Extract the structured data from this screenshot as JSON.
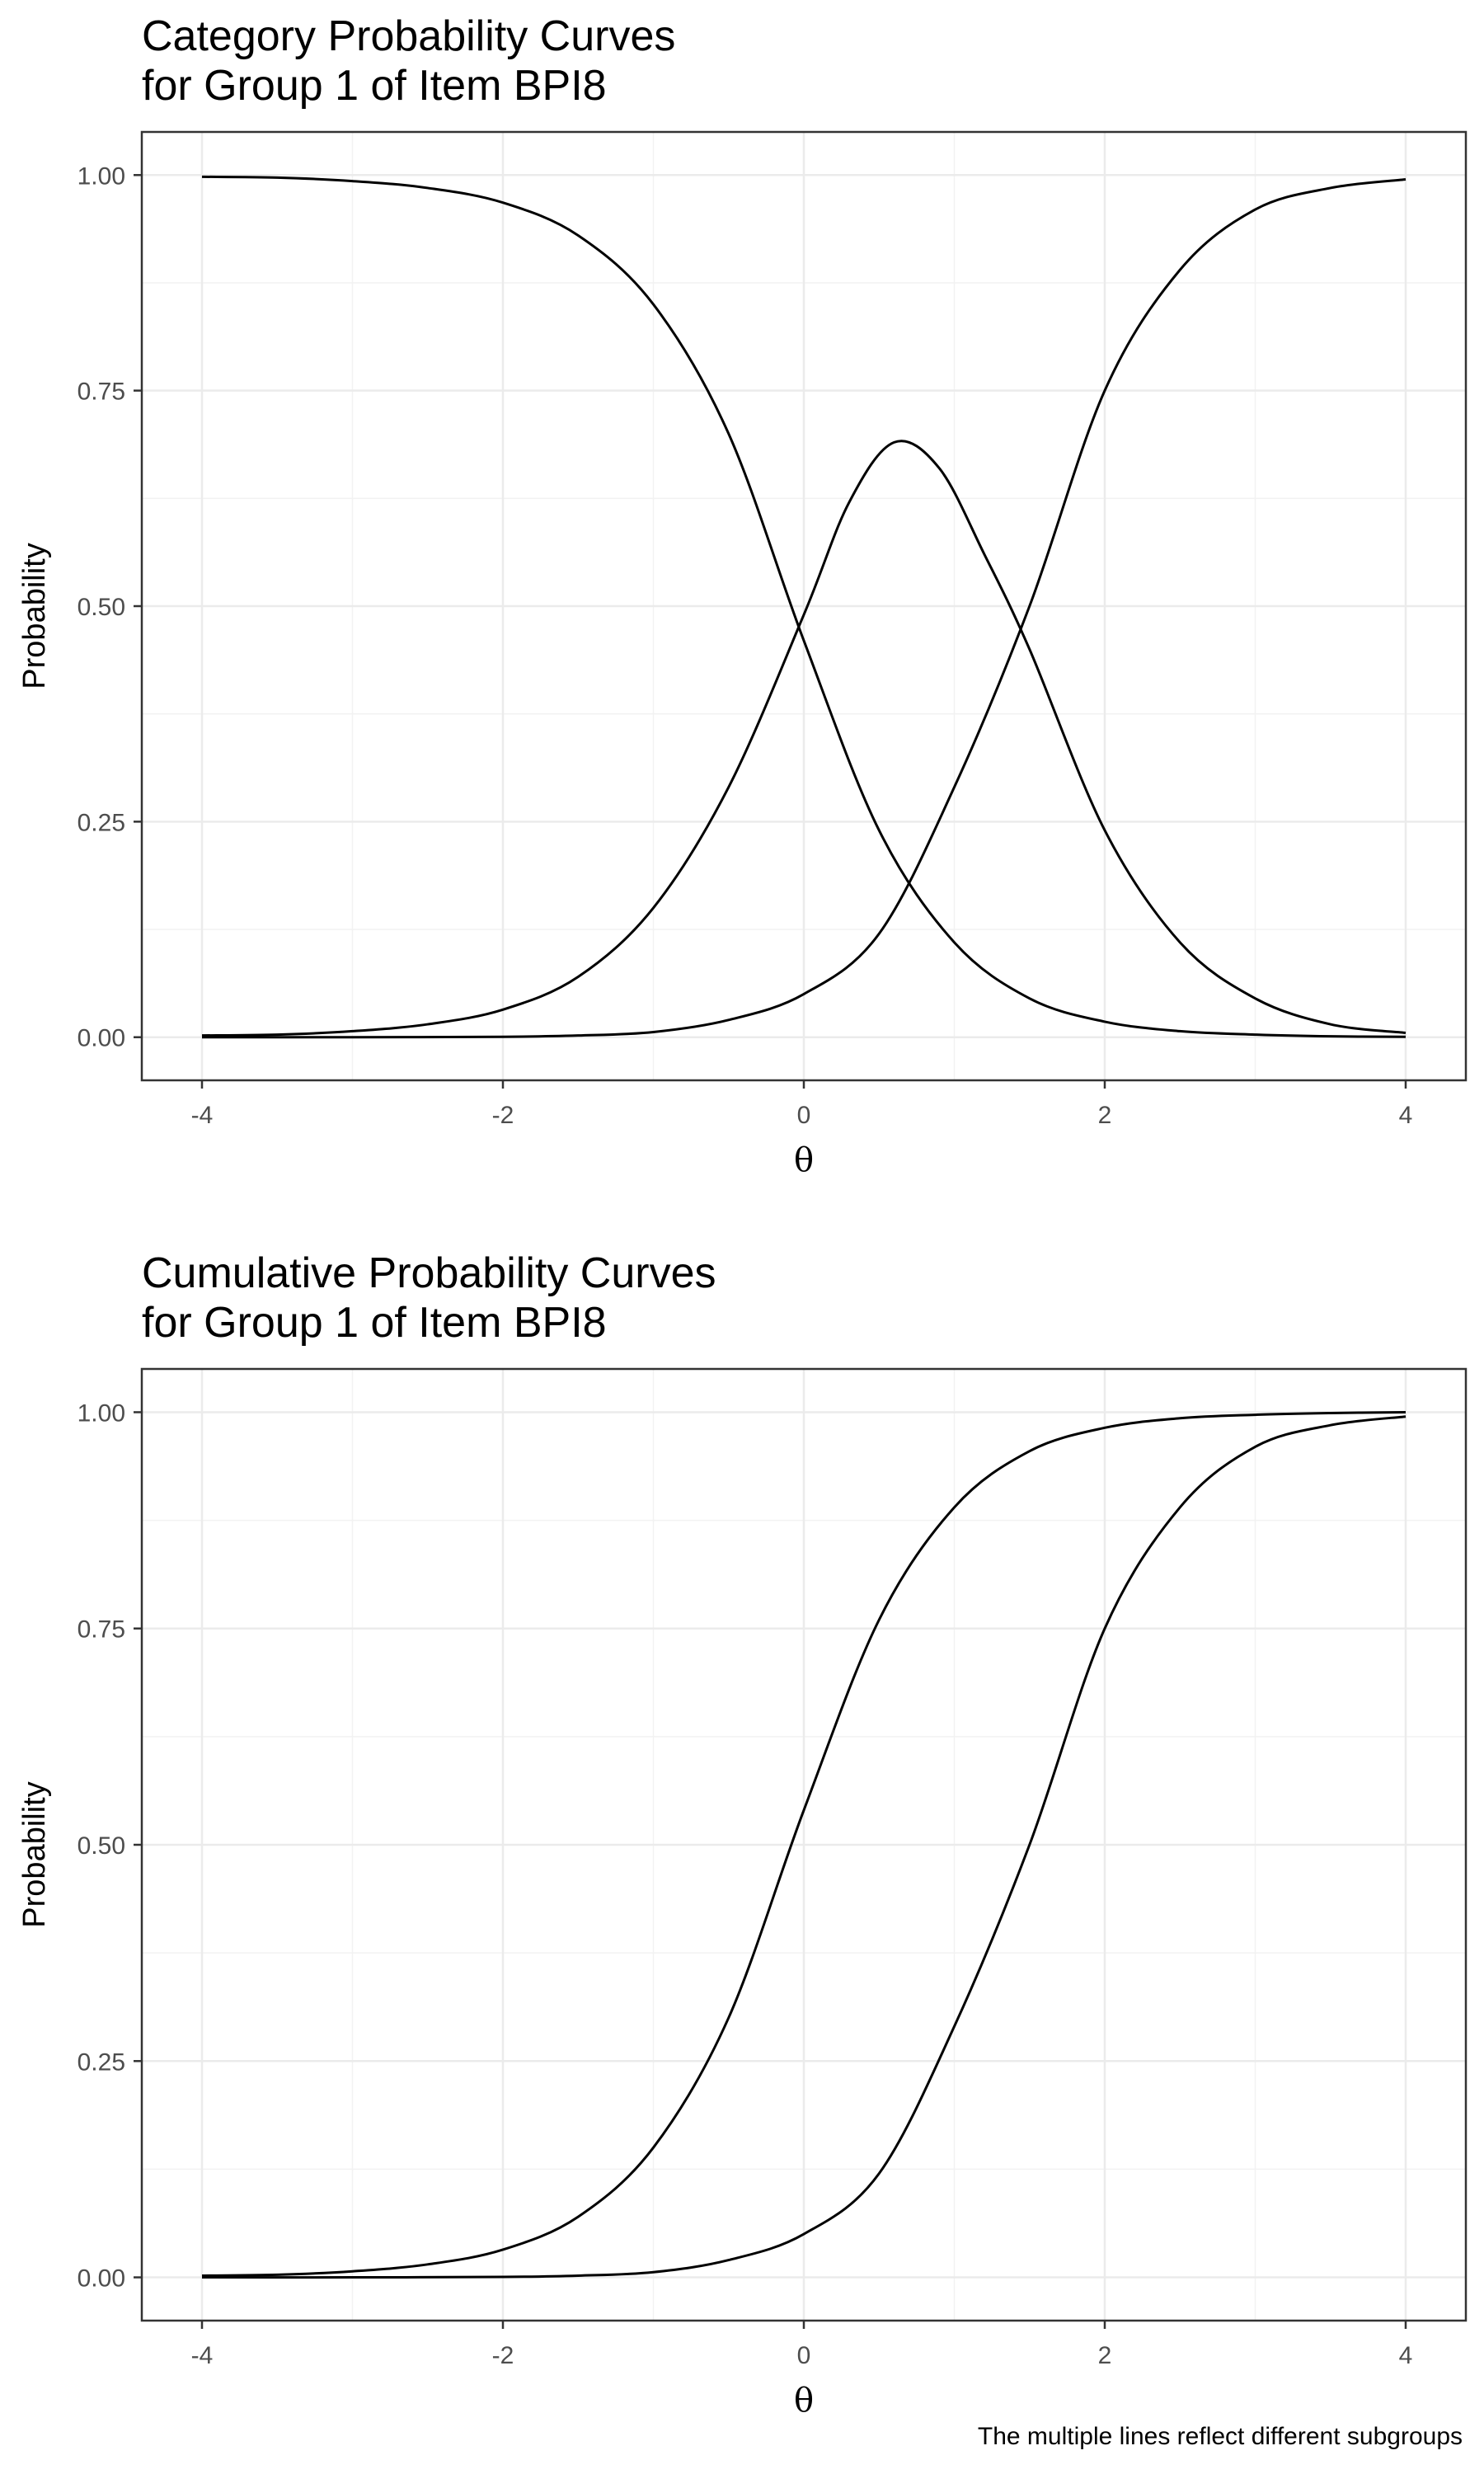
{
  "chart_data": [
    {
      "type": "line",
      "title": [
        "Category Probability Curves",
        "for Group 1 of Item BPI8"
      ],
      "xlabel": "θ",
      "ylabel": "Probability",
      "xlim": [
        -4.4,
        4.4
      ],
      "ylim": [
        -0.05,
        1.05
      ],
      "x_ticks": [
        -4,
        -2,
        0,
        2,
        4
      ],
      "x_tick_labels": [
        "-4",
        "-2",
        "0",
        "2",
        "4"
      ],
      "y_ticks": [
        0,
        0.25,
        0.5,
        0.75,
        1
      ],
      "y_tick_labels": [
        "0.00",
        "0.25",
        "0.50",
        "0.75",
        "1.00"
      ],
      "grid": true,
      "line_color": "#000000",
      "series": [
        {
          "x": [
            -4,
            -3.5,
            -3,
            -2.5,
            -2,
            -1.5,
            -1,
            -0.5,
            0,
            0.5,
            1,
            1.5,
            2,
            2.5,
            3,
            3.5,
            4
          ],
          "y": [
            0.998,
            0.997,
            0.993,
            0.985,
            0.968,
            0.93,
            0.85,
            0.7,
            0.46,
            0.24,
            0.11,
            0.045,
            0.018,
            0.007,
            0.003,
            0.001,
            0.0005
          ]
        },
        {
          "x": [
            -4,
            -3.5,
            -3,
            -2.5,
            -2,
            -1.5,
            -1,
            -0.5,
            0,
            0.3,
            0.6,
            0.9,
            1.2,
            1.5,
            2,
            2.5,
            3,
            3.5,
            4
          ],
          "y": [
            0.002,
            0.003,
            0.007,
            0.015,
            0.032,
            0.07,
            0.15,
            0.29,
            0.49,
            0.62,
            0.69,
            0.66,
            0.56,
            0.45,
            0.24,
            0.11,
            0.045,
            0.015,
            0.005
          ]
        },
        {
          "x": [
            -4,
            -3,
            -2,
            -1.5,
            -1,
            -0.5,
            0,
            0.5,
            1,
            1.5,
            2,
            2.5,
            3,
            3.5,
            4
          ],
          "y": [
            0,
            0,
            0.0005,
            0.002,
            0.006,
            0.02,
            0.05,
            0.12,
            0.29,
            0.5,
            0.75,
            0.89,
            0.96,
            0.985,
            0.995
          ]
        }
      ]
    },
    {
      "type": "line",
      "title": [
        "Cumulative Probability Curves",
        "for Group 1 of Item BPI8"
      ],
      "xlabel": "θ",
      "ylabel": "Probability",
      "xlim": [
        -4.4,
        4.4
      ],
      "ylim": [
        -0.05,
        1.05
      ],
      "x_ticks": [
        -4,
        -2,
        0,
        2,
        4
      ],
      "x_tick_labels": [
        "-4",
        "-2",
        "0",
        "2",
        "4"
      ],
      "y_ticks": [
        0,
        0.25,
        0.5,
        0.75,
        1
      ],
      "y_tick_labels": [
        "0.00",
        "0.25",
        "0.50",
        "0.75",
        "1.00"
      ],
      "grid": true,
      "line_color": "#000000",
      "series": [
        {
          "x": [
            -4,
            -3.5,
            -3,
            -2.5,
            -2,
            -1.5,
            -1,
            -0.5,
            0,
            0.5,
            1,
            1.5,
            2,
            2.5,
            3,
            3.5,
            4
          ],
          "y": [
            0.002,
            0.003,
            0.007,
            0.015,
            0.032,
            0.07,
            0.15,
            0.3,
            0.54,
            0.76,
            0.89,
            0.955,
            0.982,
            0.993,
            0.997,
            0.999,
            1.0
          ]
        },
        {
          "x": [
            -4,
            -3,
            -2,
            -1.5,
            -1,
            -0.5,
            0,
            0.5,
            1,
            1.5,
            2,
            2.5,
            3,
            3.5,
            4
          ],
          "y": [
            0,
            0,
            0.0005,
            0.002,
            0.006,
            0.02,
            0.05,
            0.12,
            0.29,
            0.5,
            0.75,
            0.89,
            0.96,
            0.985,
            0.995
          ]
        }
      ]
    }
  ],
  "caption": "The multiple lines reflect different subgroups"
}
